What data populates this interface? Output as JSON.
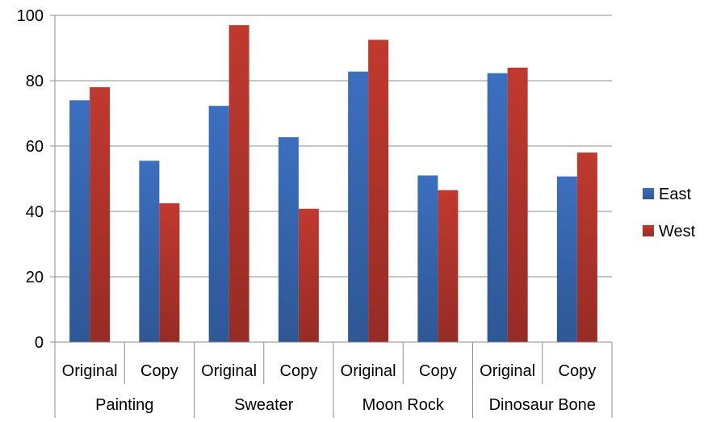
{
  "chart_data": {
    "type": "bar",
    "title": "",
    "xlabel": "",
    "ylabel": "",
    "ylim": [
      0,
      100
    ],
    "yticks": [
      0,
      20,
      40,
      60,
      80,
      100
    ],
    "grid": true,
    "legend_position": "right",
    "groups": [
      "Painting",
      "Sweater",
      "Moon Rock",
      "Dinosaur Bone"
    ],
    "subcategories": [
      "Original",
      "Copy"
    ],
    "categories": [
      "Painting Original",
      "Painting Copy",
      "Sweater Original",
      "Sweater Copy",
      "Moon Rock Original",
      "Moon Rock Copy",
      "Dinosaur Bone Original",
      "Dinosaur Bone Copy"
    ],
    "series": [
      {
        "name": "East",
        "color": "#3b6fbf",
        "values": [
          74,
          55.5,
          72.3,
          62.7,
          82.8,
          51,
          82.3,
          50.7
        ]
      },
      {
        "name": "West",
        "color": "#c0392f",
        "values": [
          78,
          42.5,
          97,
          40.8,
          92.5,
          46.5,
          84,
          58
        ]
      }
    ]
  }
}
